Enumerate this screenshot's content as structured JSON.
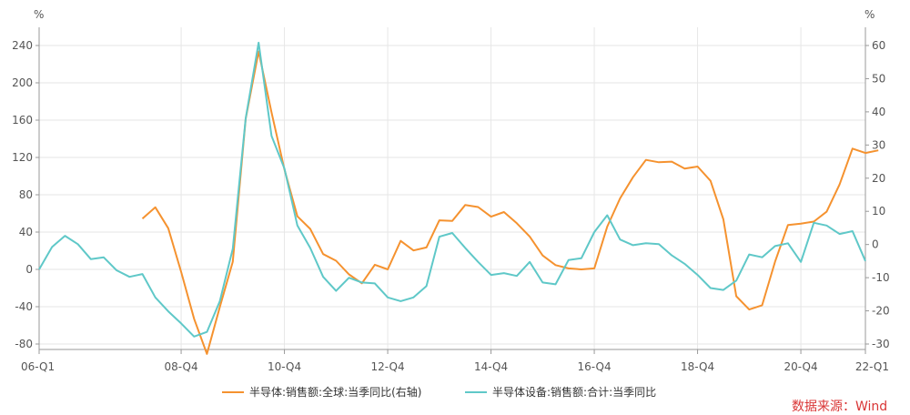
{
  "chart_data": {
    "type": "line",
    "left_unit": "%",
    "right_unit": "%",
    "left_ylim": [
      -80,
      240
    ],
    "left_ticks": [
      "240",
      "200",
      "160",
      "120",
      "80",
      "40",
      "0",
      "-40",
      "-80"
    ],
    "right_ylim": [
      -30,
      60
    ],
    "right_ticks": [
      "60",
      "50",
      "40",
      "30",
      "20",
      "10",
      "0",
      "-10",
      "-20",
      "-30"
    ],
    "x_range": [
      0,
      64
    ],
    "x_ticks": [
      {
        "label": "06-Q1",
        "q": 0
      },
      {
        "label": "08-Q4",
        "q": 11
      },
      {
        "label": "10-Q4",
        "q": 19
      },
      {
        "label": "12-Q4",
        "q": 27
      },
      {
        "label": "14-Q4",
        "q": 35
      },
      {
        "label": "16-Q4",
        "q": 43
      },
      {
        "label": "18-Q4",
        "q": 51
      },
      {
        "label": "20-Q4",
        "q": 59
      },
      {
        "label": "22-Q1",
        "q": 64
      }
    ],
    "grid": true,
    "legend_position": "bottom",
    "series": [
      {
        "name": "半导体:销售额:全球:当季同比(右轴)",
        "axis": "right",
        "color": "#f5922f",
        "start_q": 8,
        "values": [
          7.8,
          11.2,
          4.9,
          -8.3,
          -22.4,
          -33.0,
          -18.8,
          -5.2,
          37.9,
          58.2,
          39.8,
          22.6,
          8.5,
          4.7,
          -2.9,
          -4.9,
          -9.0,
          -11.7,
          -6.1,
          -7.5,
          1.1,
          -1.8,
          -0.9,
          7.3,
          7.1,
          11.9,
          11.3,
          8.4,
          9.8,
          6.4,
          2.4,
          -3.3,
          -6.2,
          -7.2,
          -7.5,
          -7.2,
          5.4,
          13.9,
          20.3,
          25.5,
          24.8,
          25.0,
          22.9,
          23.5,
          19.2,
          7.6,
          -15.6,
          -19.6,
          -18.3,
          -5.2,
          5.9,
          6.3,
          6.9,
          9.9,
          18.1,
          28.9,
          27.6,
          28.4
        ]
      },
      {
        "name": "半导体设备:销售额:合计:当季同比",
        "axis": "left",
        "color": "#5fc8c8",
        "start_q": 0,
        "values": [
          0,
          24,
          36,
          27,
          11,
          13,
          -1,
          -8,
          -5,
          -30,
          -45,
          -58,
          -72,
          -67,
          -34,
          22,
          162,
          243,
          143,
          108,
          47,
          23,
          -8,
          -23,
          -9,
          -14,
          -15,
          -30,
          -34,
          -30,
          -18,
          35,
          39,
          23,
          8,
          -6,
          -4,
          -7,
          8,
          -14,
          -16,
          10,
          12,
          40,
          58,
          32,
          26,
          28,
          27,
          15,
          6,
          -6,
          -20,
          -22,
          -12,
          16,
          13,
          25,
          28,
          8,
          50,
          47,
          38,
          41,
          9
        ]
      }
    ],
    "source_text": "数据来源：Wind"
  }
}
